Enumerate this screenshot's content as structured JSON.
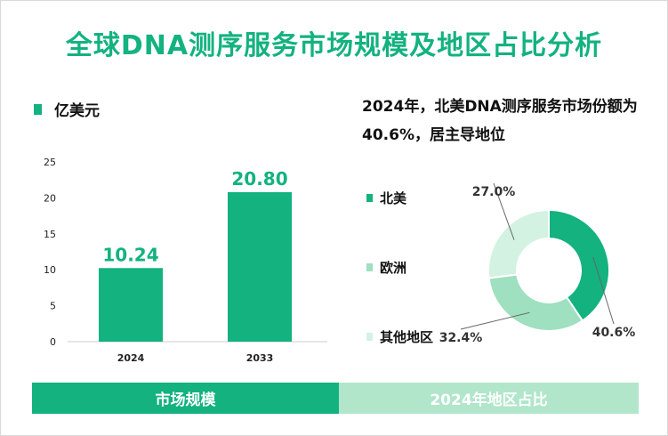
{
  "title": "全球DNA测序服务市场规模及地区占比分析",
  "unit": "亿美元",
  "note": "2024年，北美DNA测序服务市场份额为40.6%，居主导地位",
  "footer": {
    "left": "市场规模",
    "right": "2024年地区占比"
  },
  "colors": {
    "green": "#13b27f",
    "mid": "#9ee0bf",
    "light": "#d3f2e2"
  },
  "chart_data": [
    {
      "type": "bar",
      "categories": [
        "2024",
        "2033"
      ],
      "values": [
        10.24,
        20.8
      ],
      "value_labels": [
        "10.24",
        "20.80"
      ],
      "yticks": [
        "0",
        "5",
        "10",
        "15",
        "20",
        "25"
      ],
      "ylim": [
        0,
        25
      ]
    },
    {
      "type": "pie",
      "style": "donut",
      "labels": [
        "北美",
        "欧洲",
        "其他地区"
      ],
      "values": [
        40.6,
        32.4,
        27.0
      ],
      "value_labels": [
        "40.6%",
        "32.4%",
        "27.0%"
      ],
      "colors": [
        "#13b27f",
        "#9ee0bf",
        "#d3f2e2"
      ]
    }
  ]
}
